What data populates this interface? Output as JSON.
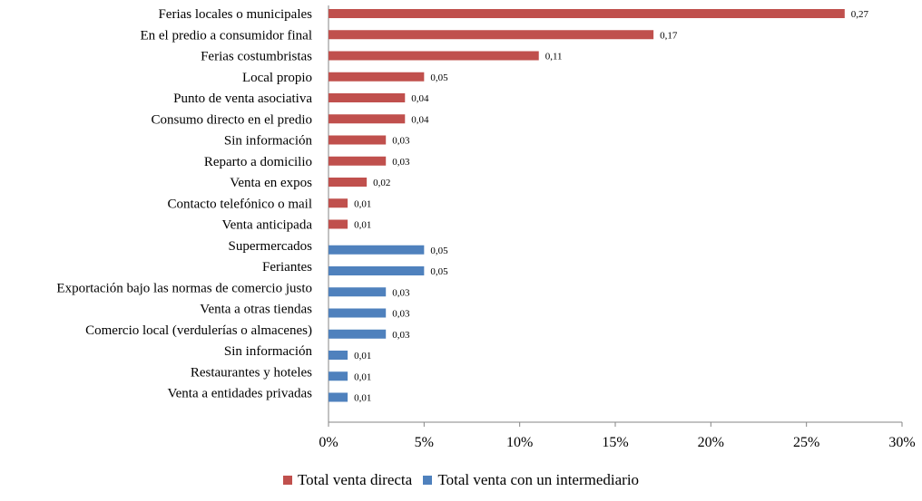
{
  "chart_data": {
    "type": "bar",
    "orientation": "horizontal",
    "categories": [
      "Ferias locales o municipales",
      "En el predio a consumidor final",
      "Ferias costumbristas",
      "Local propio",
      "Punto de venta asociativa",
      "Consumo directo en el predio",
      "Sin información",
      "Reparto a domicilio",
      "Venta en expos",
      "Contacto telefónico o mail",
      "Venta anticipada",
      "Supermercados",
      "Feriantes",
      "Exportación bajo las normas de comercio justo",
      "Venta a otras  tiendas",
      "Comercio local (verdulerías o almacenes)",
      "Sin información",
      "Restaurantes y hoteles",
      "Venta a entidades privadas"
    ],
    "series": [
      {
        "name": "Total venta directa",
        "color": "#c0504d",
        "values": [
          0.27,
          0.17,
          0.11,
          0.05,
          0.04,
          0.04,
          0.03,
          0.03,
          0.02,
          0.01,
          0.01,
          null,
          null,
          null,
          null,
          null,
          null,
          null,
          null
        ],
        "labels": [
          "0,27",
          "0,17",
          "0,11",
          "0,05",
          "0,04",
          "0,04",
          "0,03",
          "0,03",
          "0,02",
          "0,01",
          "0,01",
          "",
          "",
          "",
          "",
          "",
          "",
          "",
          ""
        ]
      },
      {
        "name": "Total venta con un intermediario",
        "color": "#4f81bd",
        "values": [
          null,
          null,
          null,
          null,
          null,
          null,
          null,
          null,
          null,
          null,
          null,
          0.05,
          0.05,
          0.03,
          0.03,
          0.03,
          0.01,
          0.01,
          0.01
        ],
        "labels": [
          "",
          "",
          "",
          "",
          "",
          "",
          "",
          "",
          "",
          "",
          "",
          "0,05",
          "0,05",
          "0,03",
          "0,03",
          "0,03",
          "0,01",
          "0,01",
          "0,01"
        ]
      }
    ],
    "xlim": [
      0,
      0.3
    ],
    "xticks": [
      0,
      0.05,
      0.1,
      0.15,
      0.2,
      0.25,
      0.3
    ],
    "xtick_labels": [
      "0%",
      "5%",
      "10%",
      "15%",
      "20%",
      "25%",
      "30%"
    ],
    "grid": false,
    "legend_position": "bottom"
  }
}
